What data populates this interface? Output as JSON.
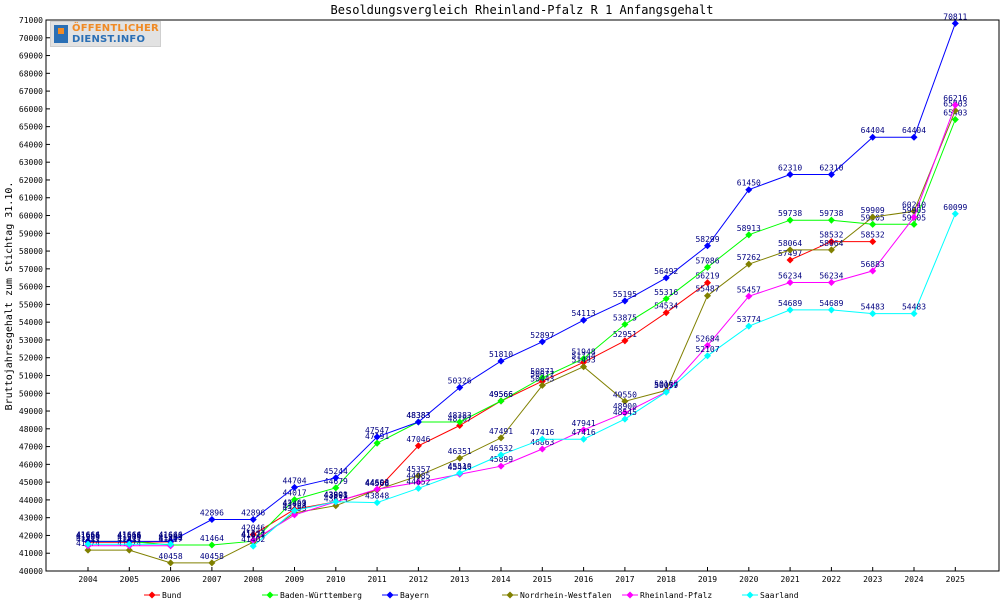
{
  "logo": {
    "line1": "ÖFFENTLICHER",
    "line2": "DIENST.INFO"
  },
  "chart_data": {
    "type": "line",
    "title": "Besoldungsvergleich Rheinland-Pfalz R 1 Anfangsgehalt",
    "xlabel": "",
    "ylabel": "Bruttojahresgehalt zum Stichtag 31.10.",
    "ylim": [
      40000,
      71000
    ],
    "yticks": [
      40000,
      41000,
      42000,
      43000,
      44000,
      45000,
      46000,
      47000,
      48000,
      49000,
      50000,
      51000,
      52000,
      53000,
      54000,
      55000,
      56000,
      57000,
      58000,
      59000,
      60000,
      61000,
      62000,
      63000,
      64000,
      65000,
      66000,
      67000,
      68000,
      69000,
      70000,
      71000
    ],
    "categories": [
      "2004",
      "2005",
      "2006",
      "2007",
      "2008",
      "2009",
      "2010",
      "2011",
      "2012",
      "2013",
      "2014",
      "2015",
      "2016",
      "2017",
      "2018",
      "2019",
      "2020",
      "2021",
      "2022",
      "2023",
      "2024",
      "2025"
    ],
    "grid": false,
    "legend_position": "bottom",
    "series": [
      {
        "name": "Bund",
        "color": "#ff0000",
        "values": [
          41615,
          41615,
          41640,
          null,
          42046,
          43469,
          43901,
          44568,
          47046,
          48187,
          49566,
          50677,
          51744,
          52951,
          54534,
          56219,
          null,
          57497,
          58532,
          58532,
          null,
          null
        ]
      },
      {
        "name": "Baden-Württemberg",
        "color": "#00ff00",
        "values": [
          41664,
          41664,
          41464,
          41464,
          41674,
          44017,
          44679,
          47191,
          48383,
          48383,
          49566,
          50871,
          51948,
          53875,
          55316,
          57086,
          58913,
          59738,
          59738,
          59505,
          59505,
          65403
        ]
      },
      {
        "name": "Bayern",
        "color": "#0000ff",
        "values": [
          41666,
          41666,
          41666,
          42896,
          42896,
          44704,
          45244,
          47547,
          48383,
          50326,
          51810,
          52897,
          54113,
          55195,
          56492,
          58299,
          61450,
          62310,
          62310,
          64404,
          64404,
          70811
        ]
      },
      {
        "name": "Nordrhein-Westfalen",
        "color": "#808000",
        "values": [
          41174,
          41174,
          40458,
          40458,
          41627,
          43268,
          43674,
          44566,
          45357,
          46351,
          47491,
          50443,
          51493,
          49550,
          50163,
          55487,
          57262,
          58064,
          58064,
          59909,
          60240,
          65903
        ]
      },
      {
        "name": "Rheinland-Pfalz",
        "color": "#ff00ff",
        "values": [
          41417,
          41417,
          41417,
          null,
          41727,
          43159,
          43891,
          44603,
          44985,
          45445,
          45899,
          46863,
          47941,
          48900,
          50079,
          52684,
          55457,
          56234,
          56234,
          56883,
          59905,
          66216
        ]
      },
      {
        "name": "Saarland",
        "color": "#00ffff",
        "values": [
          41509,
          41509,
          41509,
          null,
          41402,
          43401,
          43898,
          43848,
          44652,
          45510,
          46532,
          47416,
          47416,
          48545,
          50057,
          52107,
          53774,
          54689,
          54689,
          54483,
          54483,
          60099
        ]
      }
    ]
  }
}
